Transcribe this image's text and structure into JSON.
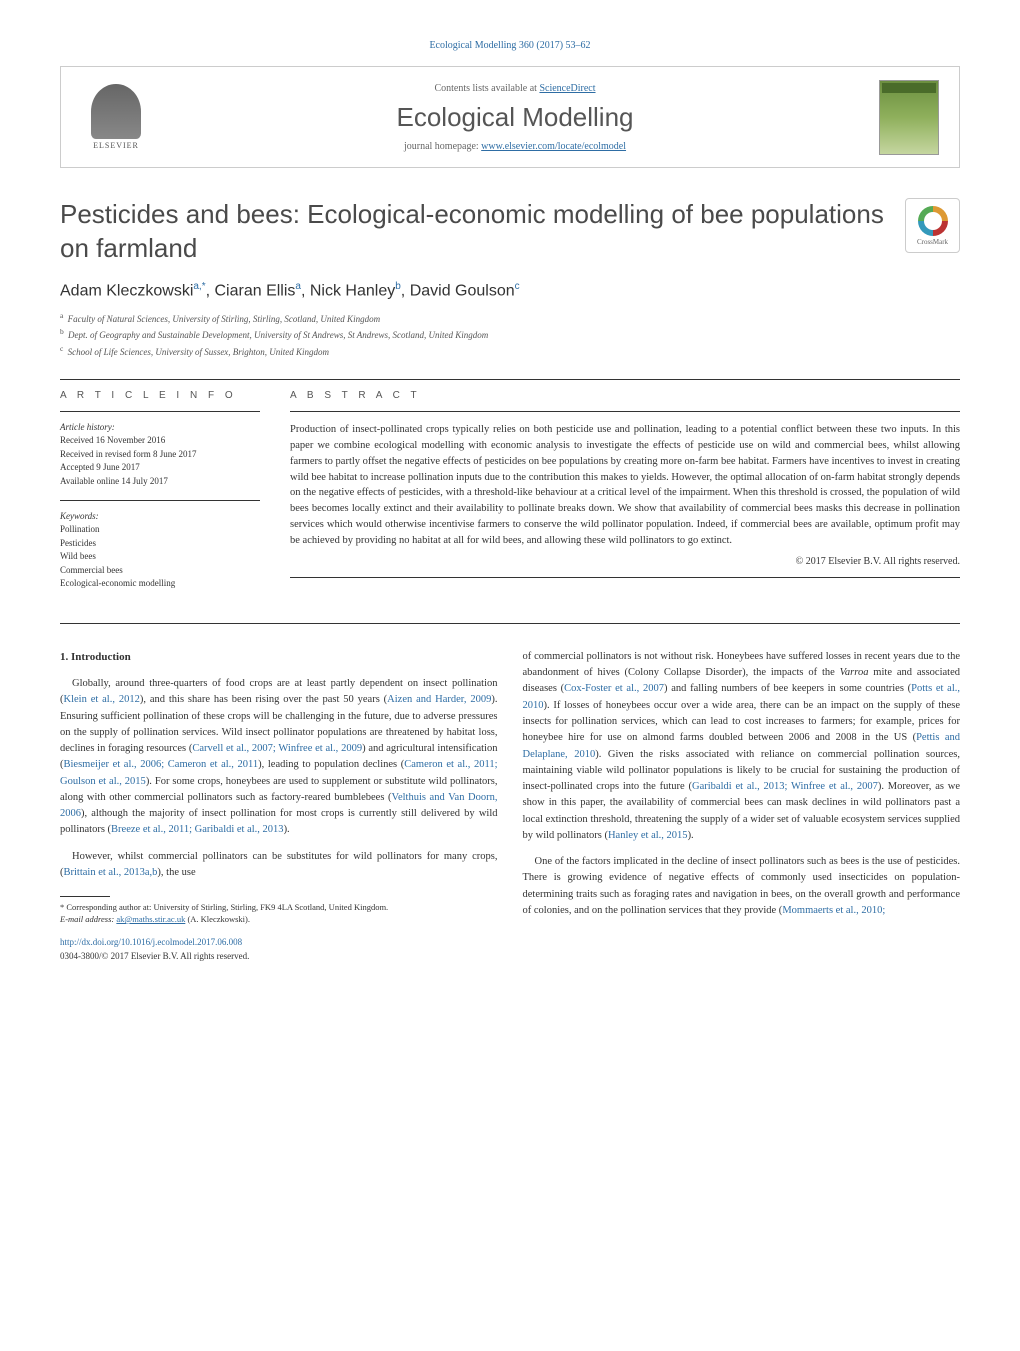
{
  "header": {
    "citation": "Ecological Modelling 360 (2017) 53–62",
    "contents_prefix": "Contents lists available at ",
    "contents_link": "ScienceDirect",
    "journal_name": "Ecological Modelling",
    "homepage_prefix": "journal homepage: ",
    "homepage_link": "www.elsevier.com/locate/ecolmodel",
    "publisher_label": "ELSEVIER"
  },
  "colors": {
    "link": "#2e6da4",
    "text": "#333333",
    "heading": "#4a4a4a",
    "border": "#cccccc"
  },
  "title": "Pesticides and bees: Ecological-economic modelling of bee populations on farmland",
  "crossmark_label": "CrossMark",
  "authors_html": "Adam Kleczkowski",
  "authors": [
    {
      "name": "Adam Kleczkowski",
      "sup": "a,*"
    },
    {
      "name": "Ciaran Ellis",
      "sup": "a"
    },
    {
      "name": "Nick Hanley",
      "sup": "b"
    },
    {
      "name": "David Goulson",
      "sup": "c"
    }
  ],
  "affiliations": [
    {
      "sup": "a",
      "text": "Faculty of Natural Sciences, University of Stirling, Stirling, Scotland, United Kingdom"
    },
    {
      "sup": "b",
      "text": "Dept. of Geography and Sustainable Development, University of St Andrews, St Andrews, Scotland, United Kingdom"
    },
    {
      "sup": "c",
      "text": "School of Life Sciences, University of Sussex, Brighton, United Kingdom"
    }
  ],
  "article_info": {
    "heading": "A R T I C L E   I N F O",
    "history_label": "Article history:",
    "history": [
      "Received 16 November 2016",
      "Received in revised form 8 June 2017",
      "Accepted 9 June 2017",
      "Available online 14 July 2017"
    ],
    "keywords_label": "Keywords:",
    "keywords": [
      "Pollination",
      "Pesticides",
      "Wild bees",
      "Commercial bees",
      "Ecological-economic modelling"
    ]
  },
  "abstract": {
    "heading": "A B S T R A C T",
    "text": "Production of insect-pollinated crops typically relies on both pesticide use and pollination, leading to a potential conflict between these two inputs. In this paper we combine ecological modelling with economic analysis to investigate the effects of pesticide use on wild and commercial bees, whilst allowing farmers to partly offset the negative effects of pesticides on bee populations by creating more on-farm bee habitat. Farmers have incentives to invest in creating wild bee habitat to increase pollination inputs due to the contribution this makes to yields. However, the optimal allocation of on-farm habitat strongly depends on the negative effects of pesticides, with a threshold-like behaviour at a critical level of the impairment. When this threshold is crossed, the population of wild bees becomes locally extinct and their availability to pollinate breaks down. We show that availability of commercial bees masks this decrease in pollination services which would otherwise incentivise farmers to conserve the wild pollinator population. Indeed, if commercial bees are available, optimum profit may be achieved by providing no habitat at all for wild bees, and allowing these wild pollinators to go extinct.",
    "copyright": "© 2017 Elsevier B.V. All rights reserved."
  },
  "body": {
    "section_number": "1.",
    "section_title": "Introduction",
    "col1_p1_a": "Globally, around three-quarters of food crops are at least partly dependent on insect pollination (",
    "col1_p1_cite1": "Klein et al., 2012",
    "col1_p1_b": "), and this share has been rising over the past 50 years (",
    "col1_p1_cite2": "Aizen and Harder, 2009",
    "col1_p1_c": "). Ensuring sufficient pollination of these crops will be challenging in the future, due to adverse pressures on the supply of pollination services. Wild insect pollinator populations are threatened by habitat loss, declines in foraging resources (",
    "col1_p1_cite3": "Carvell et al., 2007; Winfree et al., 2009",
    "col1_p1_d": ") and agricultural intensification (",
    "col1_p1_cite4": "Biesmeijer et al., 2006; Cameron et al., 2011",
    "col1_p1_e": "), leading to population declines (",
    "col1_p1_cite5": "Cameron et al., 2011; Goulson et al., 2015",
    "col1_p1_f": "). For some crops, honeybees are used to supplement or substitute wild pollinators, along with other commercial pollinators such as factory-reared bumblebees (",
    "col1_p1_cite6": "Velthuis and Van Doorn, 2006",
    "col1_p1_g": "), although the majority of insect pollination for most crops is currently still delivered by wild pollinators (",
    "col1_p1_cite7": "Breeze et al., 2011; Garibaldi et al., 2013",
    "col1_p1_h": ").",
    "col1_p2_a": "However, whilst commercial pollinators can be substitutes for wild pollinators for many crops, (",
    "col1_p2_cite1": "Brittain et al., 2013a,b",
    "col1_p2_b": "), the use",
    "col2_p1_a": "of commercial pollinators is not without risk. Honeybees have suffered losses in recent years due to the abandonment of hives (Colony Collapse Disorder), the impacts of the ",
    "col2_p1_i": "Varroa",
    "col2_p1_b": " mite and associated diseases (",
    "col2_p1_cite1": "Cox-Foster et al., 2007",
    "col2_p1_c": ") and falling numbers of bee keepers in some countries (",
    "col2_p1_cite2": "Potts et al., 2010",
    "col2_p1_d": "). If losses of honeybees occur over a wide area, there can be an impact on the supply of these insects for pollination services, which can lead to cost increases to farmers; for example, prices for honeybee hire for use on almond farms doubled between 2006 and 2008 in the US (",
    "col2_p1_cite3": "Pettis and Delaplane, 2010",
    "col2_p1_e": "). Given the risks associated with reliance on commercial pollination sources, maintaining viable wild pollinator populations is likely to be crucial for sustaining the production of insect-pollinated crops into the future (",
    "col2_p1_cite4": "Garibaldi et al., 2013; Winfree et al., 2007",
    "col2_p1_f": "). Moreover, as we show in this paper, the availability of commercial bees can mask declines in wild pollinators past a local extinction threshold, threatening the supply of a wider set of valuable ecosystem services supplied by wild pollinators (",
    "col2_p1_cite5": "Hanley et al., 2015",
    "col2_p1_g": ").",
    "col2_p2_a": "One of the factors implicated in the decline of insect pollinators such as bees is the use of pesticides. There is growing evidence of negative effects of commonly used insecticides on population-determining traits such as foraging rates and navigation in bees, on the overall growth and performance of colonies, and on the pollination services that they provide (",
    "col2_p2_cite1": "Mommaerts et al., 2010;"
  },
  "footnotes": {
    "corresponding_label": "* Corresponding author at: University of Stirling, Stirling, FK9 4LA Scotland, United Kingdom.",
    "email_label": "E-mail address: ",
    "email": "ak@maths.stir.ac.uk",
    "email_suffix": " (A. Kleczkowski).",
    "doi": "http://dx.doi.org/10.1016/j.ecolmodel.2017.06.008",
    "issn": "0304-3800/© 2017 Elsevier B.V. All rights reserved."
  }
}
